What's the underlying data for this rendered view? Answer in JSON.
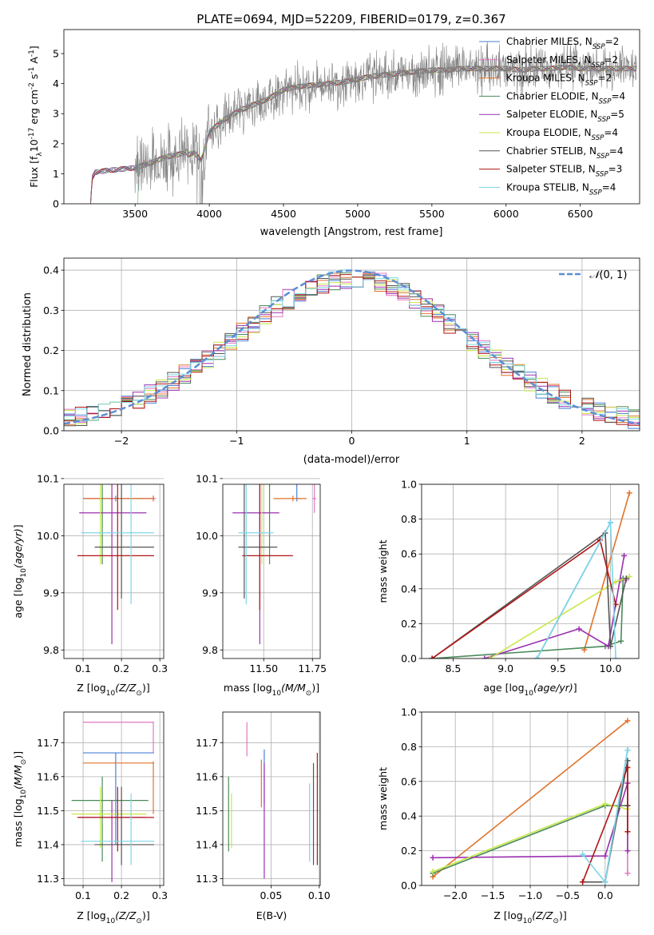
{
  "figure": {
    "title": "PLATE=0694, MJD=52209, FIBERID=0179, z=0.367"
  },
  "legend_models": [
    {
      "label": "Chabrier MILES, N",
      "sub": "SSP",
      "suffix": "=2",
      "color": "#4a7fd6"
    },
    {
      "label": "Salpeter MILES, N",
      "sub": "SSP",
      "suffix": "=2",
      "color": "#e377c2"
    },
    {
      "label": "Kroupa MILES, N",
      "sub": "SSP",
      "suffix": "=2",
      "color": "#e0732b"
    },
    {
      "label": "Chabrier ELODIE, N",
      "sub": "SSP",
      "suffix": "=4",
      "color": "#4a8a5a"
    },
    {
      "label": "Salpeter ELODIE, N",
      "sub": "SSP",
      "suffix": "=5",
      "color": "#9b30b0"
    },
    {
      "label": "Kroupa ELODIE, N",
      "sub": "SSP",
      "suffix": "=4",
      "color": "#c8e84a"
    },
    {
      "label": "Chabrier STELIB, N",
      "sub": "SSP",
      "suffix": "=4",
      "color": "#555555"
    },
    {
      "label": "Salpeter STELIB, N",
      "sub": "SSP",
      "suffix": "=3",
      "color": "#b01515"
    },
    {
      "label": "Kroupa STELIB, N",
      "sub": "SSP",
      "suffix": "=4",
      "color": "#7dd6e8"
    }
  ],
  "chart_data": [
    {
      "id": "spectrum",
      "type": "line",
      "xlabel": "wavelength [Angstrom, rest frame]",
      "ylabel": "Flux [f",
      "ylabel_sub": "λ",
      "ylabel_rest": "10",
      "ylabel_exp": "-17",
      "ylabel_units": " erg cm",
      "ylabel_units_exp": "-2",
      "ylabel_s": " s",
      "ylabel_s_exp": "-1",
      "ylabel_A": " A",
      "ylabel_A_exp": "-1",
      "ylabel_end": "]",
      "xlim": [
        3020,
        6900
      ],
      "ylim": [
        0,
        5.8
      ],
      "xticks": [
        3500,
        4000,
        4500,
        5000,
        5500,
        6000,
        6500
      ],
      "yticks": [
        0,
        1,
        2,
        3,
        4,
        5
      ],
      "data_color": "#808080",
      "continuum": {
        "x": [
          3200,
          3210,
          3230,
          3300,
          3400,
          3500,
          3600,
          3700,
          3800,
          3900,
          3950,
          4000,
          4100,
          4200,
          4300,
          4400,
          4500,
          4600,
          4700,
          4800,
          4900,
          5000,
          5100,
          5200,
          5300,
          5400,
          5500,
          5600,
          5700,
          5800,
          5900,
          6000,
          6100,
          6200,
          6300,
          6400,
          6500,
          6600,
          6700,
          6800,
          6880
        ],
        "y": [
          0.0,
          0.85,
          1.05,
          1.1,
          1.15,
          1.2,
          1.35,
          1.55,
          1.65,
          1.8,
          1.5,
          2.4,
          2.8,
          3.1,
          3.3,
          3.5,
          3.8,
          3.9,
          3.95,
          4.0,
          4.05,
          4.15,
          4.25,
          4.3,
          4.35,
          4.4,
          4.45,
          4.45,
          4.5,
          4.5,
          4.5,
          4.5,
          4.45,
          4.5,
          4.5,
          4.55,
          4.5,
          4.5,
          4.5,
          4.5,
          4.5
        ]
      },
      "noisy_ranges": [
        [
          3500,
          4000,
          1.0
        ],
        [
          4000,
          6880,
          0.7
        ]
      ]
    },
    {
      "id": "residuals",
      "type": "area",
      "xlabel": "(data-model)/error",
      "ylabel": "Normed distribution",
      "xlim": [
        -2.5,
        2.5
      ],
      "ylim": [
        0,
        0.43
      ],
      "xticks": [
        -2,
        -1,
        0,
        1,
        2
      ],
      "yticks": [
        0.0,
        0.1,
        0.2,
        0.3,
        0.4
      ],
      "bin_width": 0.1,
      "legend": "N(0,1)",
      "gauss_color": "#5b8ed6"
    },
    {
      "id": "age_Z",
      "type": "scatter",
      "xlabel": "Z [log",
      "xlabel_sub": "10",
      "xlabel_rest": "(Z/Z",
      "xlabel_sun": "⊙",
      "xlabel_end": ")]",
      "ylabel": "age  [log",
      "ylabel_sub": "10",
      "ylabel_rest": "(age/yr)]",
      "xlim": [
        0.05,
        0.31
      ],
      "ylim": [
        9.785,
        10.09
      ],
      "xticks": [
        0.1,
        0.2,
        0.3
      ],
      "yticks": [
        9.8,
        9.9,
        10.0,
        10.1
      ],
      "points": [
        {
          "x": 0.185,
          "y": 10.065,
          "xerr": [
            0.1,
            0.285
          ],
          "yerr": [
            10.06,
            10.07
          ],
          "color": "#4a7fd6"
        },
        {
          "x": 0.283,
          "y": 10.065,
          "xerr": [
            0.1,
            0.29
          ],
          "yerr": [
            10.06,
            10.07
          ],
          "color": "#e377c2"
        },
        {
          "x": 0.283,
          "y": 10.065,
          "xerr": [
            0.1,
            0.285
          ],
          "yerr": [
            10.06,
            10.07
          ],
          "color": "#e0732b"
        },
        {
          "x": 0.15,
          "y": 10.12,
          "xerr": [
            0.07,
            0.27
          ],
          "yerr": [
            9.95,
            10.13
          ],
          "color": "#4a8a5a"
        },
        {
          "x": 0.175,
          "y": 10.04,
          "xerr": [
            0.09,
            0.265
          ],
          "yerr": [
            9.81,
            10.1
          ],
          "color": "#9b30b0"
        },
        {
          "x": 0.145,
          "y": 10.105,
          "xerr": [
            0.07,
            0.265
          ],
          "yerr": [
            9.95,
            10.12
          ],
          "color": "#c8e84a"
        },
        {
          "x": 0.2,
          "y": 9.98,
          "xerr": [
            0.13,
            0.285
          ],
          "yerr": [
            9.89,
            10.12
          ],
          "color": "#555555"
        },
        {
          "x": 0.19,
          "y": 9.965,
          "xerr": [
            0.085,
            0.285
          ],
          "yerr": [
            9.87,
            10.1
          ],
          "color": "#b01515"
        },
        {
          "x": 0.225,
          "y": 10.005,
          "xerr": [
            0.095,
            0.285
          ],
          "yerr": [
            9.88,
            10.12
          ],
          "color": "#7dd6e8"
        }
      ]
    },
    {
      "id": "age_mass",
      "type": "scatter",
      "xlabel": "mass [log",
      "xlabel_sub": "10",
      "xlabel_rest": "(M/M",
      "xlabel_sun": "⊙",
      "xlabel_end": ")]",
      "xlim": [
        11.29,
        11.79
      ],
      "ylim": [
        9.785,
        10.09
      ],
      "xticks": [
        11.5,
        11.75
      ],
      "xticklabels": [
        "11.50",
        "11.75"
      ],
      "yticks": [
        9.8,
        9.9,
        10.0,
        10.1
      ],
      "points": [
        {
          "x": 11.67,
          "y": 10.065,
          "xerr": [
            11.66,
            11.69
          ],
          "yerr": [
            10.06,
            10.14
          ],
          "color": "#4a7fd6"
        },
        {
          "x": 11.76,
          "y": 10.065,
          "xerr": [
            11.75,
            11.77
          ],
          "yerr": [
            10.04,
            10.14
          ],
          "color": "#e377c2"
        },
        {
          "x": 11.65,
          "y": 10.065,
          "xerr": [
            11.55,
            11.72
          ],
          "yerr": [
            10.06,
            10.07
          ],
          "color": "#e0732b"
        },
        {
          "x": 11.53,
          "y": 10.12,
          "xerr": [
            11.43,
            11.62
          ],
          "yerr": [
            9.95,
            10.13
          ],
          "color": "#4a8a5a"
        },
        {
          "x": 11.48,
          "y": 10.04,
          "xerr": [
            11.34,
            11.58
          ],
          "yerr": [
            9.81,
            10.1
          ],
          "color": "#9b30b0"
        },
        {
          "x": 11.49,
          "y": 10.105,
          "xerr": [
            11.43,
            11.62
          ],
          "yerr": [
            9.95,
            10.12
          ],
          "color": "#c8e84a"
        },
        {
          "x": 11.4,
          "y": 9.98,
          "xerr": [
            11.37,
            11.57
          ],
          "yerr": [
            9.89,
            10.12
          ],
          "color": "#555555"
        },
        {
          "x": 11.48,
          "y": 9.965,
          "xerr": [
            11.39,
            11.65
          ],
          "yerr": [
            9.87,
            10.1
          ],
          "color": "#b01515"
        },
        {
          "x": 11.41,
          "y": 10.005,
          "xerr": [
            11.37,
            11.55
          ],
          "yerr": [
            9.88,
            10.12
          ],
          "color": "#7dd6e8"
        }
      ]
    },
    {
      "id": "mw_age",
      "type": "line",
      "xlabel": "age  [log",
      "xlabel_sub": "10",
      "xlabel_rest": "(age/yr)]",
      "ylabel": "mass weight",
      "xlim": [
        8.2,
        10.27
      ],
      "ylim": [
        0,
        1.0
      ],
      "xticks": [
        8.5,
        9.0,
        9.5,
        10.0
      ],
      "yticks": [
        0.0,
        0.2,
        0.4,
        0.6,
        0.8,
        1.0
      ],
      "series": [
        {
          "color": "#e0732b",
          "x": [
            9.75,
            10.18
          ],
          "y": [
            0.05,
            0.95
          ]
        },
        {
          "color": "#4a7fd6",
          "x": [
            9.3,
            10.0
          ],
          "y": [
            0.0,
            0.78
          ]
        },
        {
          "color": "#e377c2",
          "x": [
            10.1,
            10.15
          ],
          "y": [
            0.45,
            0.45
          ]
        },
        {
          "color": "#4a8a5a",
          "x": [
            8.3,
            9.95,
            10.1,
            10.12
          ],
          "y": [
            0.0,
            0.07,
            0.1,
            0.46
          ]
        },
        {
          "color": "#9b30b0",
          "x": [
            8.8,
            9.7,
            9.98,
            10.13
          ],
          "y": [
            0.0,
            0.17,
            0.07,
            0.59
          ]
        },
        {
          "color": "#c8e84a",
          "x": [
            8.85,
            10.05,
            10.18
          ],
          "y": [
            0.0,
            0.44,
            0.47
          ]
        },
        {
          "color": "#555555",
          "x": [
            8.3,
            9.95,
            10.0,
            10.15
          ],
          "y": [
            0.0,
            0.72,
            0.07,
            0.46
          ]
        },
        {
          "color": "#b01515",
          "x": [
            8.3,
            9.9,
            10.05
          ],
          "y": [
            0.0,
            0.68,
            0.31
          ]
        },
        {
          "color": "#7dd6e8",
          "x": [
            9.3,
            10.0,
            10.05
          ],
          "y": [
            0.0,
            0.78,
            0.0
          ]
        }
      ]
    },
    {
      "id": "mass_Z",
      "type": "scatter",
      "xlabel": "Z [log",
      "xlabel_sub": "10",
      "xlabel_rest": "(Z/Z",
      "xlabel_sun": "⊙",
      "xlabel_end": ")]",
      "ylabel": "mass [log",
      "ylabel_sub": "10",
      "ylabel_rest": "(M/M",
      "ylabel_sun": "⊙",
      "ylabel_end": ")]",
      "xlim": [
        0.05,
        0.31
      ],
      "ylim": [
        11.28,
        11.79
      ],
      "xticks": [
        0.1,
        0.2,
        0.3
      ],
      "yticks": [
        11.3,
        11.4,
        11.5,
        11.6,
        11.7
      ],
      "points": [
        {
          "x": 0.185,
          "y": 11.67,
          "xerr": [
            0.1,
            0.285
          ],
          "yerr": [
            11.4,
            11.67
          ],
          "color": "#4a7fd6"
        },
        {
          "x": 0.283,
          "y": 11.76,
          "xerr": [
            0.1,
            0.285
          ],
          "yerr": [
            11.67,
            11.76
          ],
          "color": "#e377c2"
        },
        {
          "x": 0.283,
          "y": 11.64,
          "xerr": [
            0.1,
            0.285
          ],
          "yerr": [
            11.49,
            11.645
          ],
          "color": "#e0732b"
        },
        {
          "x": 0.15,
          "y": 11.53,
          "xerr": [
            0.07,
            0.27
          ],
          "yerr": [
            11.35,
            11.6
          ],
          "color": "#4a8a5a"
        },
        {
          "x": 0.175,
          "y": 11.48,
          "xerr": [
            0.09,
            0.265
          ],
          "yerr": [
            11.29,
            11.53
          ],
          "color": "#9b30b0"
        },
        {
          "x": 0.145,
          "y": 11.49,
          "xerr": [
            0.07,
            0.265
          ],
          "yerr": [
            11.39,
            11.57
          ],
          "color": "#c8e84a"
        },
        {
          "x": 0.2,
          "y": 11.4,
          "xerr": [
            0.13,
            0.285
          ],
          "yerr": [
            11.34,
            11.57
          ],
          "color": "#555555"
        },
        {
          "x": 0.19,
          "y": 11.48,
          "xerr": [
            0.085,
            0.285
          ],
          "yerr": [
            11.38,
            11.57
          ],
          "color": "#b01515"
        },
        {
          "x": 0.225,
          "y": 11.41,
          "xerr": [
            0.095,
            0.285
          ],
          "yerr": [
            11.34,
            11.55
          ],
          "color": "#7dd6e8"
        }
      ]
    },
    {
      "id": "mass_ebv",
      "type": "scatter",
      "xlabel": "E(B-V)",
      "xlim": [
        0.0,
        0.101
      ],
      "ylim": [
        11.28,
        11.79
      ],
      "xticks": [
        0.05,
        0.1
      ],
      "xticklabels": [
        "0.05",
        "0.10"
      ],
      "yticks": [
        11.3,
        11.4,
        11.5,
        11.6,
        11.7
      ],
      "points": [
        {
          "x": 0.043,
          "y": 11.6,
          "yerr": [
            11.52,
            11.68
          ],
          "color": "#4a7fd6"
        },
        {
          "x": 0.025,
          "y": 11.71,
          "yerr": [
            11.66,
            11.76
          ],
          "color": "#e377c2"
        },
        {
          "x": 0.04,
          "y": 11.58,
          "yerr": [
            11.51,
            11.65
          ],
          "color": "#e0732b"
        },
        {
          "x": 0.006,
          "y": 11.5,
          "yerr": [
            11.38,
            11.6
          ],
          "color": "#4a8a5a"
        },
        {
          "x": 0.043,
          "y": 11.47,
          "yerr": [
            11.3,
            11.64
          ],
          "color": "#9b30b0"
        },
        {
          "x": 0.009,
          "y": 11.47,
          "yerr": [
            11.39,
            11.55
          ],
          "color": "#c8e84a"
        },
        {
          "x": 0.094,
          "y": 11.5,
          "yerr": [
            11.34,
            11.64
          ],
          "color": "#555555"
        },
        {
          "x": 0.098,
          "y": 11.5,
          "yerr": [
            11.34,
            11.67
          ],
          "color": "#b01515"
        },
        {
          "x": 0.09,
          "y": 11.49,
          "yerr": [
            11.35,
            11.58
          ],
          "color": "#7dd6e8"
        }
      ]
    },
    {
      "id": "mw_Z",
      "type": "line",
      "xlabel": "Z [log",
      "xlabel_sub": "10",
      "xlabel_rest": "(Z/Z",
      "xlabel_sun": "⊙",
      "xlabel_end": ")]",
      "ylabel": "mass weight",
      "xlim": [
        -2.45,
        0.45
      ],
      "ylim": [
        0,
        1.0
      ],
      "xticks": [
        -2.0,
        -1.5,
        -1.0,
        -0.5,
        0.0
      ],
      "xticklabels": [
        "−2.0",
        "−1.5",
        "−1.0",
        "−0.5",
        "0.0"
      ],
      "yticks": [
        0.0,
        0.2,
        0.4,
        0.6,
        0.8,
        1.0
      ],
      "series": [
        {
          "color": "#e0732b",
          "x": [
            -2.3,
            0.3
          ],
          "y": [
            0.05,
            0.95
          ]
        },
        {
          "color": "#4a7fd6",
          "x": [
            0.0,
            0.3
          ],
          "y": [
            0.02,
            0.78
          ]
        },
        {
          "color": "#e377c2",
          "x": [
            0.3,
            0.3
          ],
          "y": [
            0.07,
            0.46
          ]
        },
        {
          "color": "#4a8a5a",
          "x": [
            -2.3,
            0.0,
            0.3
          ],
          "y": [
            0.07,
            0.46,
            0.46
          ]
        },
        {
          "color": "#9b30b0",
          "x": [
            -2.3,
            0.0,
            0.3,
            0.3
          ],
          "y": [
            0.16,
            0.17,
            0.59,
            0.2
          ]
        },
        {
          "color": "#c8e84a",
          "x": [
            -2.3,
            0.0,
            0.3
          ],
          "y": [
            0.08,
            0.47,
            0.44
          ]
        },
        {
          "color": "#555555",
          "x": [
            -0.3,
            0.0,
            0.3,
            0.3
          ],
          "y": [
            0.02,
            0.02,
            0.72,
            0.46
          ]
        },
        {
          "color": "#b01515",
          "x": [
            -0.3,
            0.3,
            0.3
          ],
          "y": [
            0.02,
            0.68,
            0.31
          ]
        },
        {
          "color": "#7dd6e8",
          "x": [
            -0.3,
            0.0,
            0.3
          ],
          "y": [
            0.18,
            0.02,
            0.78
          ]
        }
      ]
    }
  ]
}
